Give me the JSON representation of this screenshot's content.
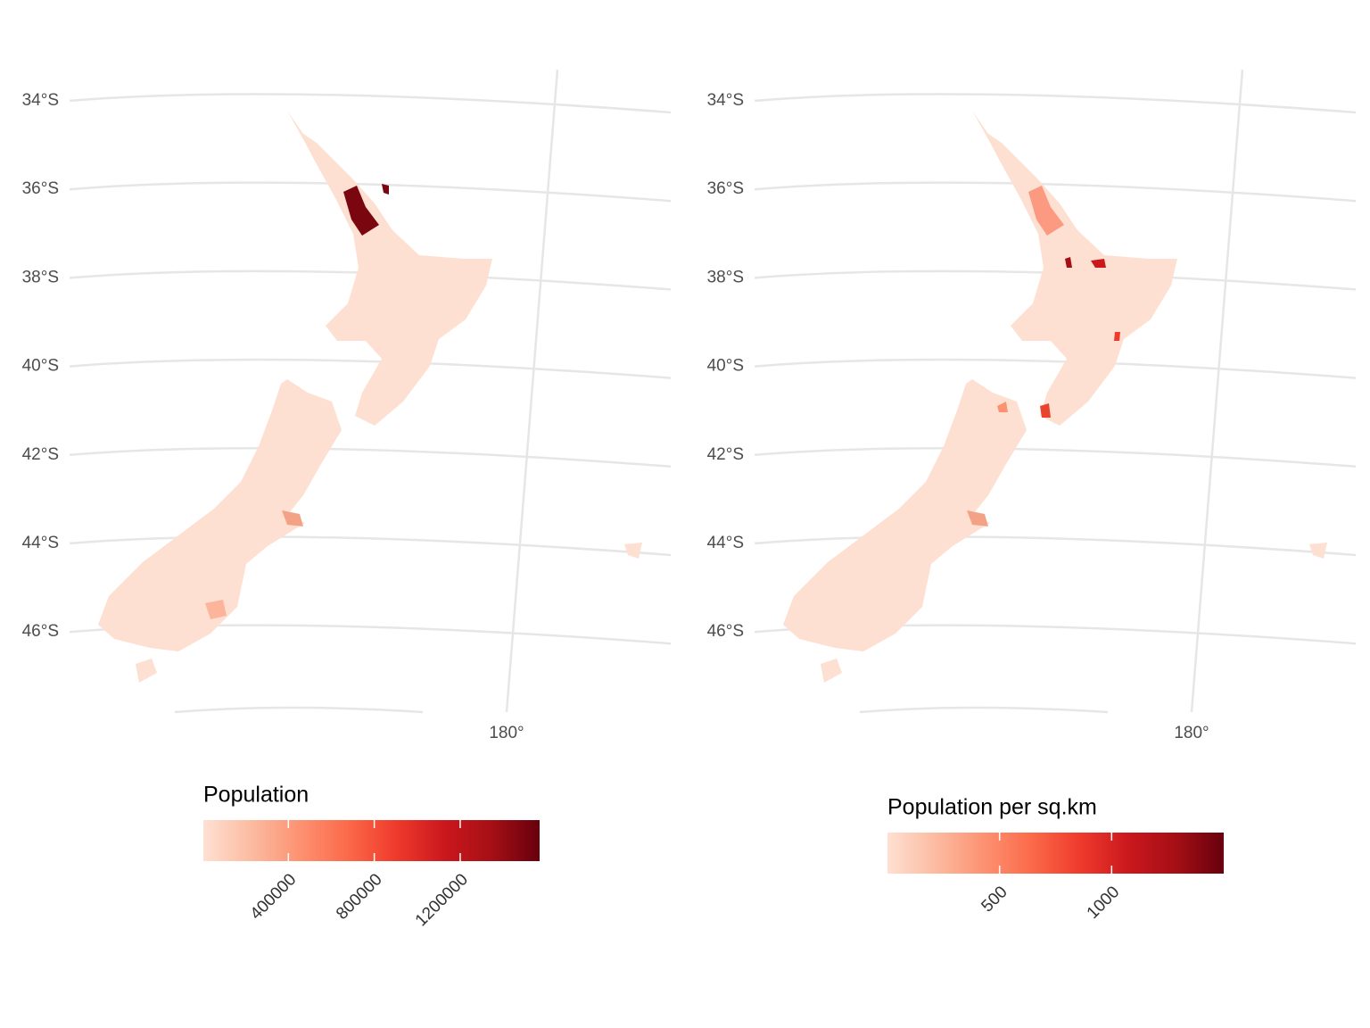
{
  "chart_data": [
    {
      "type": "map",
      "legend_title": "Population",
      "legend_lim": [
        4000,
        1570000
      ],
      "legend_ticks": [
        400000,
        800000,
        1200000
      ],
      "colors": [
        "#fee0d2",
        "#fcbba1",
        "#fc9272",
        "#fb6a4a",
        "#ef3b2c",
        "#cb181d",
        "#a50f15",
        "#67000d"
      ],
      "yticks": [
        {
          "value": -34,
          "label": "34°S"
        },
        {
          "value": -36,
          "label": "36°S"
        },
        {
          "value": -38,
          "label": "38°S"
        },
        {
          "value": -40,
          "label": "40°S"
        },
        {
          "value": -42,
          "label": "42°S"
        },
        {
          "value": -44,
          "label": "44°S"
        },
        {
          "value": -46,
          "label": "46°S"
        }
      ],
      "xticks": [
        {
          "value": 180,
          "label": "180°"
        }
      ]
    },
    {
      "type": "map",
      "legend_title": "Population per sq.km",
      "legend_lim": [
        0,
        1500
      ],
      "legend_ticks": [
        500,
        1000
      ],
      "colors": [
        "#fee0d2",
        "#fcbba1",
        "#fc9272",
        "#fb6a4a",
        "#ef3b2c",
        "#cb181d",
        "#a50f15",
        "#67000d"
      ],
      "yticks": [
        {
          "value": -34,
          "label": "34°S"
        },
        {
          "value": -36,
          "label": "36°S"
        },
        {
          "value": -38,
          "label": "38°S"
        },
        {
          "value": -40,
          "label": "40°S"
        },
        {
          "value": -42,
          "label": "42°S"
        },
        {
          "value": -44,
          "label": "44°S"
        },
        {
          "value": -46,
          "label": "46°S"
        }
      ],
      "xticks": [
        {
          "value": 180,
          "label": "180°"
        }
      ]
    }
  ]
}
